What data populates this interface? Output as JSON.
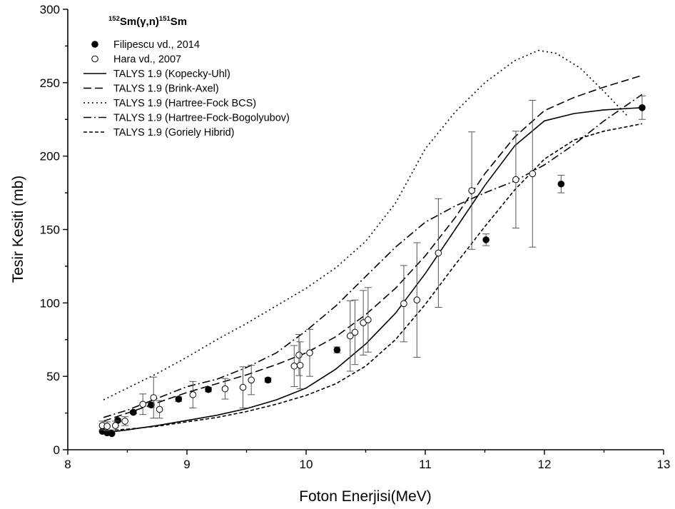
{
  "chart_data": {
    "type": "scatter",
    "title_parts": [
      {
        "text": "152",
        "sup": true
      },
      {
        "text": "Sm(γ,n)",
        "sup": false
      },
      {
        "text": "151",
        "sup": true
      },
      {
        "text": "Sm",
        "sup": false
      }
    ],
    "xlabel": "Foton Enerjisi(MeV)",
    "ylabel": "Tesir Kesiti (mb)",
    "xlim": [
      8,
      13
    ],
    "ylim": [
      0,
      300
    ],
    "xticks": [
      8,
      9,
      10,
      11,
      12,
      13
    ],
    "yticks": [
      0,
      50,
      100,
      150,
      200,
      250,
      300
    ],
    "legend_position": "top-left",
    "grid": false,
    "series": [
      {
        "name": "Filipescu vd., 2014",
        "kind": "points",
        "marker": "filled-circle",
        "color": "#000000",
        "points": [
          {
            "x": 8.29,
            "y": 12.5,
            "err": 0.5
          },
          {
            "x": 8.33,
            "y": 11.5,
            "err": 0.5
          },
          {
            "x": 8.37,
            "y": 11.0,
            "err": 0.5
          },
          {
            "x": 8.42,
            "y": 20.0,
            "err": 1
          },
          {
            "x": 8.55,
            "y": 25.5,
            "err": 1
          },
          {
            "x": 8.7,
            "y": 30.5,
            "err": 1.5
          },
          {
            "x": 8.93,
            "y": 34.5,
            "err": 1.5
          },
          {
            "x": 9.18,
            "y": 41.0,
            "err": 1.5
          },
          {
            "x": 9.68,
            "y": 47.5,
            "err": 1.5
          },
          {
            "x": 10.26,
            "y": 68.0,
            "err": 2
          },
          {
            "x": 11.51,
            "y": 143.0,
            "err": 4
          },
          {
            "x": 12.14,
            "y": 181.0,
            "err": 6
          },
          {
            "x": 12.82,
            "y": 233.0,
            "err": 8
          }
        ]
      },
      {
        "name": "Hara vd., 2007",
        "kind": "points",
        "marker": "open-circle",
        "color": "#000000",
        "points": [
          {
            "x": 8.29,
            "y": 16.5,
            "err": 3
          },
          {
            "x": 8.33,
            "y": 16.0,
            "err": 3
          },
          {
            "x": 8.4,
            "y": 16.5,
            "err": 3
          },
          {
            "x": 8.48,
            "y": 19.5,
            "err": 3
          },
          {
            "x": 8.63,
            "y": 31.0,
            "err": 7
          },
          {
            "x": 8.72,
            "y": 35.5,
            "err": 14
          },
          {
            "x": 8.77,
            "y": 27.5,
            "err": 6
          },
          {
            "x": 9.05,
            "y": 37.5,
            "err": 9
          },
          {
            "x": 9.32,
            "y": 41.5,
            "err": 7
          },
          {
            "x": 9.47,
            "y": 42.5,
            "err": 14
          },
          {
            "x": 9.54,
            "y": 47.5,
            "err": 10
          },
          {
            "x": 9.9,
            "y": 57.0,
            "err": 14
          },
          {
            "x": 9.94,
            "y": 64.5,
            "err": 14
          },
          {
            "x": 9.95,
            "y": 57.5,
            "err": 16
          },
          {
            "x": 10.03,
            "y": 66.0,
            "err": 16
          },
          {
            "x": 10.37,
            "y": 77.5,
            "err": 24
          },
          {
            "x": 10.41,
            "y": 80.0,
            "err": 22
          },
          {
            "x": 10.48,
            "y": 86.5,
            "err": 22
          },
          {
            "x": 10.52,
            "y": 88.5,
            "err": 22
          },
          {
            "x": 10.82,
            "y": 99.5,
            "err": 26
          },
          {
            "x": 10.93,
            "y": 102.0,
            "err": 39
          },
          {
            "x": 11.11,
            "y": 134.0,
            "err": 37
          },
          {
            "x": 11.39,
            "y": 176.5,
            "err": 40
          },
          {
            "x": 11.76,
            "y": 184.0,
            "err": 33
          },
          {
            "x": 11.9,
            "y": 188.0,
            "err": 50
          }
        ]
      },
      {
        "name": "TALYS 1.9 (Kopecky-Uhl)",
        "kind": "line",
        "dash": "",
        "color": "#000000",
        "x": [
          8.3,
          8.5,
          8.75,
          9.0,
          9.25,
          9.5,
          9.75,
          10.0,
          10.25,
          10.5,
          10.75,
          11.0,
          11.25,
          11.5,
          11.75,
          12.0,
          12.25,
          12.5,
          12.82
        ],
        "y": [
          11.5,
          13.5,
          16.5,
          20.0,
          23.5,
          28.0,
          34.0,
          42.0,
          55.0,
          72.0,
          93.0,
          120.0,
          150.0,
          180.0,
          207.0,
          224.0,
          229.0,
          231.5,
          233.0
        ]
      },
      {
        "name": "TALYS 1.9 (Brink-Axel)",
        "kind": "line",
        "dash": "11,5",
        "color": "#000000",
        "x": [
          8.3,
          8.5,
          8.75,
          9.0,
          9.25,
          9.5,
          9.75,
          10.0,
          10.25,
          10.5,
          10.75,
          11.0,
          11.25,
          11.5,
          11.75,
          12.0,
          12.25,
          12.5,
          12.82
        ],
        "y": [
          19.5,
          25.0,
          32.0,
          39.0,
          45.0,
          51.0,
          58.0,
          66.0,
          77.0,
          92.0,
          110.0,
          132.0,
          158.0,
          188.0,
          213.0,
          231.0,
          240.0,
          247.0,
          255.0
        ]
      },
      {
        "name": "TALYS 1.9 (Hartree-Fock BCS)",
        "kind": "line",
        "dash": "2,4",
        "color": "#000000",
        "x": [
          8.3,
          8.5,
          8.75,
          9.0,
          9.25,
          9.5,
          9.75,
          10.0,
          10.25,
          10.5,
          10.75,
          11.0,
          11.25,
          11.5,
          11.75,
          11.95,
          12.1,
          12.3,
          12.5,
          12.7
        ],
        "y": [
          34.0,
          42.0,
          52.0,
          63.0,
          75.0,
          86.0,
          98.0,
          110.0,
          124.0,
          142.0,
          168.0,
          205.0,
          230.0,
          250.0,
          265.0,
          272.0,
          270.0,
          260.0,
          244.0,
          227.0
        ]
      },
      {
        "name": "TALYS 1.9 (Hartree-Fock-Bogolyubov)",
        "kind": "line",
        "dash": "11,4,2,4",
        "color": "#000000",
        "x": [
          8.3,
          8.5,
          8.75,
          9.0,
          9.25,
          9.5,
          9.75,
          10.0,
          10.25,
          10.5,
          10.75,
          11.0,
          11.25,
          11.5,
          11.75,
          12.0,
          12.25,
          12.5,
          12.82
        ],
        "y": [
          22.0,
          27.0,
          35.0,
          43.0,
          48.0,
          56.0,
          66.0,
          81.0,
          98.0,
          118.0,
          138.0,
          155.0,
          166.0,
          175.0,
          183.0,
          194.0,
          208.0,
          224.0,
          242.0
        ]
      },
      {
        "name": "TALYS 1.9 (Goriely Hibrid)",
        "kind": "line",
        "dash": "5,3",
        "color": "#000000",
        "x": [
          8.3,
          8.5,
          8.75,
          9.0,
          9.25,
          9.5,
          9.75,
          10.0,
          10.25,
          10.5,
          10.75,
          11.0,
          11.25,
          11.5,
          11.75,
          12.0,
          12.25,
          12.5,
          12.82
        ],
        "y": [
          13.0,
          14.0,
          16.0,
          19.0,
          22.0,
          26.0,
          31.0,
          37.0,
          45.0,
          57.0,
          75.0,
          99.0,
          126.0,
          152.0,
          177.0,
          198.0,
          211.0,
          217.0,
          222.0
        ]
      }
    ]
  }
}
